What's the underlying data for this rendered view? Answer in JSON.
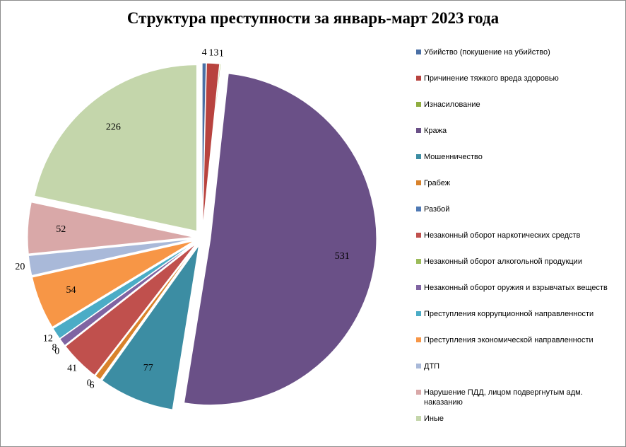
{
  "chart_data": {
    "type": "pie",
    "title": "Структура преступности за январь-март 2023 года",
    "categories": [
      "Убийство (покушение на убийство)",
      "Причинение тяжкого вреда здоровью",
      "Изнасилование",
      "Кража",
      "Мошенничество",
      "Грабеж",
      "Разбой",
      "Незаконный оборот наркотических средств",
      "Незаконный оборот алкогольной продукции",
      "Незаконный оборот оружия и взрывчатых веществ",
      "Преступления коррупционной направленности",
      "Преступления экономической направленности",
      "ДТП",
      "Нарушение ПДД, лицом подвергнутым адм. наказанию",
      "Иные"
    ],
    "values": [
      4,
      13,
      1,
      531,
      77,
      6,
      0,
      41,
      0,
      8,
      12,
      54,
      20,
      52,
      226
    ],
    "colors": [
      "#4a6fa5",
      "#b8433f",
      "#8fad3f",
      "#6a5087",
      "#3c8da3",
      "#d9822b",
      "#4f79b4",
      "#c0504d",
      "#9bbb59",
      "#8064a2",
      "#4bacc6",
      "#f79646",
      "#a9b9d9",
      "#d9a8a8",
      "#c4d6ab"
    ]
  }
}
